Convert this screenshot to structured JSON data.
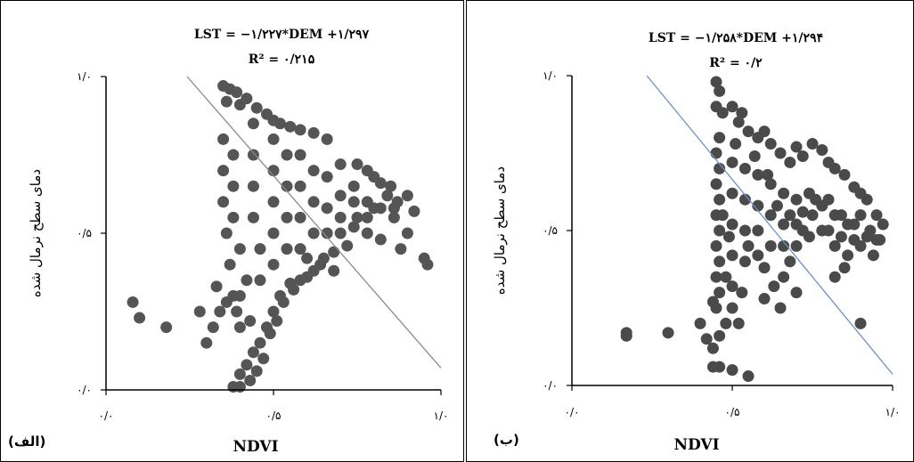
{
  "chart_data": [
    {
      "type": "scatter",
      "panel_label": "(الف)",
      "equation": "LST = −۱/۲۲۷*DEM +۱/۲۹۷",
      "r2_label": "R² = ۰/۲۱۵",
      "xlabel": "NDVI",
      "ylabel": "دمای سطح نرمال شده",
      "xlim": [
        0,
        1
      ],
      "ylim": [
        0,
        1
      ],
      "x_ticks": [
        "۰/۰",
        "۰/۵",
        "۱/۰"
      ],
      "y_ticks": [
        "۰/۰",
        "۰/۵",
        "۱/۰"
      ],
      "trendline": {
        "slope": -1.227,
        "intercept": 1.297
      },
      "grid": false,
      "point_color": "#555555",
      "line_color": "#8a8a8a",
      "points": [
        [
          0.35,
          0.97
        ],
        [
          0.37,
          0.96
        ],
        [
          0.39,
          0.95
        ],
        [
          0.42,
          0.93
        ],
        [
          0.36,
          0.92
        ],
        [
          0.4,
          0.91
        ],
        [
          0.45,
          0.9
        ],
        [
          0.48,
          0.88
        ],
        [
          0.5,
          0.86
        ],
        [
          0.52,
          0.85
        ],
        [
          0.55,
          0.84
        ],
        [
          0.58,
          0.83
        ],
        [
          0.62,
          0.82
        ],
        [
          0.66,
          0.8
        ],
        [
          0.7,
          0.72
        ],
        [
          0.75,
          0.72
        ],
        [
          0.78,
          0.7
        ],
        [
          0.8,
          0.68
        ],
        [
          0.82,
          0.66
        ],
        [
          0.85,
          0.65
        ],
        [
          0.87,
          0.6
        ],
        [
          0.9,
          0.62
        ],
        [
          0.92,
          0.57
        ],
        [
          0.95,
          0.42
        ],
        [
          0.96,
          0.4
        ],
        [
          0.88,
          0.45
        ],
        [
          0.82,
          0.48
        ],
        [
          0.78,
          0.5
        ],
        [
          0.72,
          0.46
        ],
        [
          0.68,
          0.44
        ],
        [
          0.62,
          0.38
        ],
        [
          0.58,
          0.35
        ],
        [
          0.55,
          0.34
        ],
        [
          0.52,
          0.3
        ],
        [
          0.5,
          0.25
        ],
        [
          0.48,
          0.2
        ],
        [
          0.46,
          0.15
        ],
        [
          0.44,
          0.12
        ],
        [
          0.42,
          0.08
        ],
        [
          0.4,
          0.05
        ],
        [
          0.38,
          0.01
        ],
        [
          0.4,
          0.01
        ],
        [
          0.43,
          0.03
        ],
        [
          0.45,
          0.06
        ],
        [
          0.47,
          0.1
        ],
        [
          0.49,
          0.18
        ],
        [
          0.51,
          0.22
        ],
        [
          0.53,
          0.28
        ],
        [
          0.56,
          0.32
        ],
        [
          0.6,
          0.36
        ],
        [
          0.65,
          0.42
        ],
        [
          0.7,
          0.5
        ],
        [
          0.75,
          0.55
        ],
        [
          0.8,
          0.58
        ],
        [
          0.84,
          0.62
        ],
        [
          0.86,
          0.55
        ],
        [
          0.9,
          0.5
        ],
        [
          0.35,
          0.8
        ],
        [
          0.35,
          0.7
        ],
        [
          0.35,
          0.6
        ],
        [
          0.36,
          0.5
        ],
        [
          0.37,
          0.4
        ],
        [
          0.38,
          0.3
        ],
        [
          0.39,
          0.25
        ],
        [
          0.4,
          0.2
        ],
        [
          0.38,
          0.75
        ],
        [
          0.38,
          0.65
        ],
        [
          0.38,
          0.55
        ],
        [
          0.4,
          0.45
        ],
        [
          0.42,
          0.35
        ],
        [
          0.44,
          0.85
        ],
        [
          0.44,
          0.75
        ],
        [
          0.44,
          0.65
        ],
        [
          0.44,
          0.55
        ],
        [
          0.46,
          0.45
        ],
        [
          0.46,
          0.35
        ],
        [
          0.5,
          0.8
        ],
        [
          0.5,
          0.7
        ],
        [
          0.5,
          0.6
        ],
        [
          0.5,
          0.5
        ],
        [
          0.5,
          0.4
        ],
        [
          0.54,
          0.75
        ],
        [
          0.54,
          0.65
        ],
        [
          0.54,
          0.55
        ],
        [
          0.54,
          0.45
        ],
        [
          0.58,
          0.75
        ],
        [
          0.58,
          0.65
        ],
        [
          0.58,
          0.55
        ],
        [
          0.58,
          0.45
        ],
        [
          0.62,
          0.7
        ],
        [
          0.62,
          0.6
        ],
        [
          0.62,
          0.5
        ],
        [
          0.66,
          0.68
        ],
        [
          0.66,
          0.58
        ],
        [
          0.66,
          0.5
        ],
        [
          0.7,
          0.62
        ],
        [
          0.7,
          0.55
        ],
        [
          0.74,
          0.65
        ],
        [
          0.74,
          0.6
        ],
        [
          0.74,
          0.52
        ],
        [
          0.78,
          0.6
        ],
        [
          0.78,
          0.55
        ],
        [
          0.82,
          0.58
        ],
        [
          0.86,
          0.58
        ],
        [
          0.68,
          0.38
        ],
        [
          0.64,
          0.4
        ],
        [
          0.6,
          0.42
        ],
        [
          0.33,
          0.33
        ],
        [
          0.28,
          0.25
        ],
        [
          0.18,
          0.2
        ],
        [
          0.08,
          0.28
        ],
        [
          0.1,
          0.23
        ],
        [
          0.3,
          0.15
        ],
        [
          0.32,
          0.2
        ],
        [
          0.34,
          0.25
        ],
        [
          0.36,
          0.28
        ],
        [
          0.4,
          0.3
        ],
        [
          0.43,
          0.22
        ]
      ]
    },
    {
      "type": "scatter",
      "panel_label": "(ب)",
      "equation": "LST = −۱/۲۵۸*DEM +۱/۲۹۴",
      "r2_label": "R² = ۰/۲",
      "xlabel": "NDVI",
      "ylabel": "دمای سطح نرمال شده",
      "xlim": [
        0,
        1
      ],
      "ylim": [
        0,
        1
      ],
      "x_ticks": [
        "۰/۰",
        "۰/۵",
        "۱/۰"
      ],
      "y_ticks": [
        "۰/۰",
        "۰/۵",
        "۱/۰"
      ],
      "trendline": {
        "slope": -1.258,
        "intercept": 1.294
      },
      "grid": false,
      "point_color": "#4a4a4a",
      "line_color": "#6b93c7",
      "points": [
        [
          0.45,
          0.98
        ],
        [
          0.46,
          0.95
        ],
        [
          0.45,
          0.9
        ],
        [
          0.47,
          0.88
        ],
        [
          0.5,
          0.9
        ],
        [
          0.52,
          0.85
        ],
        [
          0.55,
          0.82
        ],
        [
          0.58,
          0.8
        ],
        [
          0.6,
          0.82
        ],
        [
          0.62,
          0.78
        ],
        [
          0.65,
          0.75
        ],
        [
          0.68,
          0.72
        ],
        [
          0.7,
          0.77
        ],
        [
          0.72,
          0.74
        ],
        [
          0.75,
          0.78
        ],
        [
          0.78,
          0.76
        ],
        [
          0.8,
          0.72
        ],
        [
          0.82,
          0.7
        ],
        [
          0.85,
          0.68
        ],
        [
          0.88,
          0.64
        ],
        [
          0.9,
          0.62
        ],
        [
          0.92,
          0.6
        ],
        [
          0.95,
          0.55
        ],
        [
          0.97,
          0.52
        ],
        [
          0.96,
          0.47
        ],
        [
          0.93,
          0.5
        ],
        [
          0.9,
          0.45
        ],
        [
          0.88,
          0.47
        ],
        [
          0.86,
          0.52
        ],
        [
          0.84,
          0.55
        ],
        [
          0.8,
          0.6
        ],
        [
          0.78,
          0.58
        ],
        [
          0.75,
          0.55
        ],
        [
          0.72,
          0.5
        ],
        [
          0.7,
          0.45
        ],
        [
          0.68,
          0.4
        ],
        [
          0.66,
          0.35
        ],
        [
          0.63,
          0.32
        ],
        [
          0.6,
          0.38
        ],
        [
          0.58,
          0.42
        ],
        [
          0.55,
          0.45
        ],
        [
          0.53,
          0.3
        ],
        [
          0.5,
          0.25
        ],
        [
          0.48,
          0.2
        ],
        [
          0.46,
          0.16
        ],
        [
          0.44,
          0.12
        ],
        [
          0.46,
          0.06
        ],
        [
          0.5,
          0.05
        ],
        [
          0.55,
          0.03
        ],
        [
          0.44,
          0.06
        ],
        [
          0.45,
          0.25
        ],
        [
          0.46,
          0.3
        ],
        [
          0.45,
          0.35
        ],
        [
          0.46,
          0.4
        ],
        [
          0.45,
          0.45
        ],
        [
          0.46,
          0.5
        ],
        [
          0.45,
          0.55
        ],
        [
          0.46,
          0.6
        ],
        [
          0.45,
          0.65
        ],
        [
          0.46,
          0.7
        ],
        [
          0.45,
          0.75
        ],
        [
          0.46,
          0.8
        ],
        [
          0.5,
          0.72
        ],
        [
          0.5,
          0.62
        ],
        [
          0.5,
          0.52
        ],
        [
          0.5,
          0.42
        ],
        [
          0.5,
          0.32
        ],
        [
          0.54,
          0.7
        ],
        [
          0.54,
          0.6
        ],
        [
          0.54,
          0.5
        ],
        [
          0.54,
          0.4
        ],
        [
          0.58,
          0.68
        ],
        [
          0.58,
          0.58
        ],
        [
          0.58,
          0.5
        ],
        [
          0.62,
          0.65
        ],
        [
          0.62,
          0.55
        ],
        [
          0.62,
          0.45
        ],
        [
          0.66,
          0.62
        ],
        [
          0.66,
          0.52
        ],
        [
          0.66,
          0.45
        ],
        [
          0.7,
          0.6
        ],
        [
          0.7,
          0.52
        ],
        [
          0.74,
          0.48
        ],
        [
          0.74,
          0.62
        ],
        [
          0.78,
          0.5
        ],
        [
          0.82,
          0.45
        ],
        [
          0.82,
          0.55
        ],
        [
          0.86,
          0.42
        ],
        [
          0.9,
          0.55
        ],
        [
          0.94,
          0.42
        ],
        [
          0.85,
          0.38
        ],
        [
          0.65,
          0.25
        ],
        [
          0.6,
          0.28
        ],
        [
          0.7,
          0.3
        ],
        [
          0.9,
          0.2
        ],
        [
          0.82,
          0.35
        ],
        [
          0.3,
          0.17
        ],
        [
          0.17,
          0.17
        ],
        [
          0.17,
          0.16
        ],
        [
          0.4,
          0.2
        ],
        [
          0.42,
          0.15
        ],
        [
          0.48,
          0.35
        ],
        [
          0.52,
          0.2
        ],
        [
          0.44,
          0.27
        ],
        [
          0.47,
          0.55
        ],
        [
          0.49,
          0.48
        ],
        [
          0.51,
          0.78
        ],
        [
          0.53,
          0.88
        ],
        [
          0.57,
          0.74
        ],
        [
          0.61,
          0.68
        ],
        [
          0.64,
          0.58
        ],
        [
          0.68,
          0.55
        ],
        [
          0.72,
          0.56
        ],
        [
          0.76,
          0.6
        ],
        [
          0.8,
          0.5
        ],
        [
          0.84,
          0.48
        ],
        [
          0.88,
          0.52
        ],
        [
          0.92,
          0.48
        ],
        [
          0.95,
          0.47
        ]
      ]
    }
  ]
}
